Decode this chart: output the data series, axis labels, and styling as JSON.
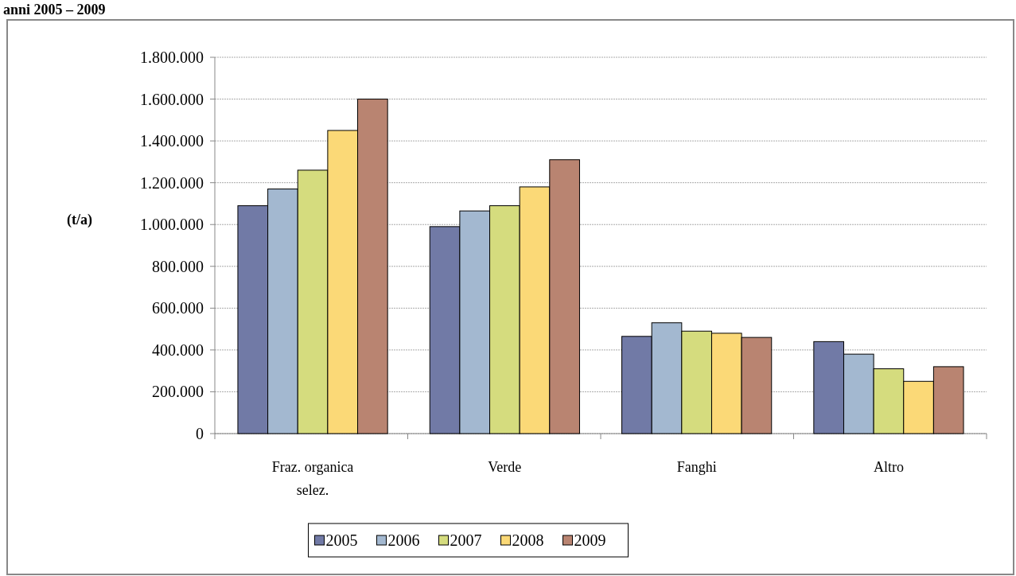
{
  "chart_data": {
    "type": "bar",
    "title": "anni 2005 – 2009",
    "ylabel": "(t/a)",
    "categories": [
      "Fraz. organica selez.",
      "Verde",
      "Fanghi",
      "Altro"
    ],
    "series": [
      {
        "name": "2005",
        "color": "#717aa6",
        "values": [
          1090000,
          990000,
          465000,
          440000
        ]
      },
      {
        "name": "2006",
        "color": "#a3b8d0",
        "values": [
          1170000,
          1065000,
          530000,
          380000
        ]
      },
      {
        "name": "2007",
        "color": "#d5dc7e",
        "values": [
          1260000,
          1090000,
          490000,
          310000
        ]
      },
      {
        "name": "2008",
        "color": "#fbd977",
        "values": [
          1450000,
          1180000,
          480000,
          250000
        ]
      },
      {
        "name": "2009",
        "color": "#b98471",
        "values": [
          1600000,
          1310000,
          460000,
          320000
        ]
      }
    ],
    "ylim": [
      0,
      1800000
    ],
    "yticks": [
      {
        "value": 0,
        "label": "0"
      },
      {
        "value": 200000,
        "label": "200.000"
      },
      {
        "value": 400000,
        "label": "400.000"
      },
      {
        "value": 600000,
        "label": "600.000"
      },
      {
        "value": 800000,
        "label": "800.000"
      },
      {
        "value": 1000000,
        "label": "1.000.000"
      },
      {
        "value": 1200000,
        "label": "1.200.000"
      },
      {
        "value": 1400000,
        "label": "1.400.000"
      },
      {
        "value": 1600000,
        "label": "1.600.000"
      },
      {
        "value": 1800000,
        "label": "1.800.000"
      }
    ],
    "grid": "y",
    "legend": "bottom"
  }
}
